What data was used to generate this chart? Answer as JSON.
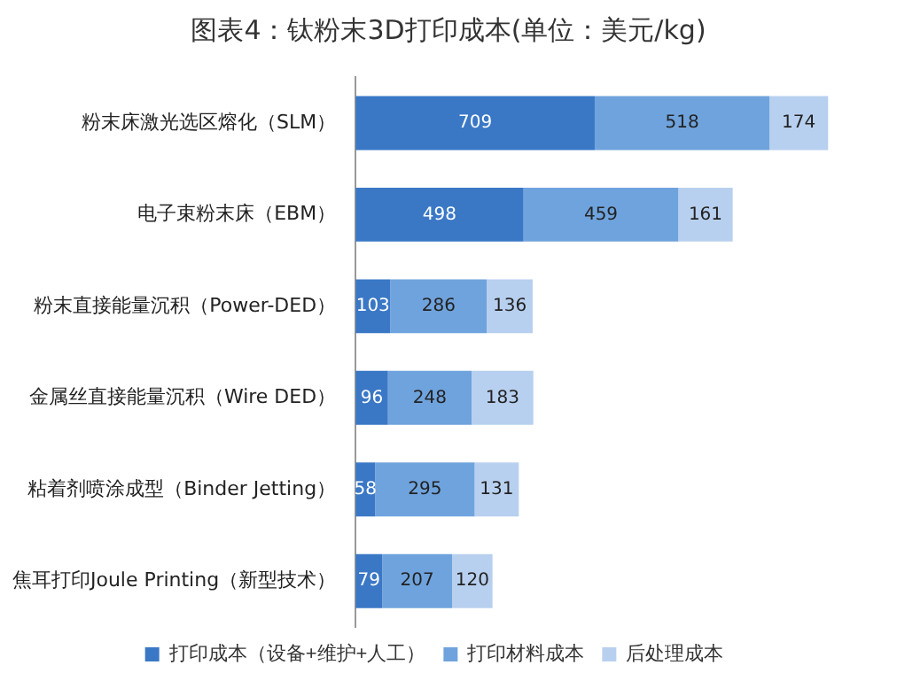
{
  "chart_data": {
    "type": "bar",
    "orientation": "horizontal",
    "stacked": true,
    "title": "图表4：钛粉末3D打印成本(单位：美元/kg)",
    "categories": [
      "粉末床激光选区熔化（SLM）",
      "电子束粉末床（EBM）",
      "粉末直接能量沉积（Power-DED）",
      "金属丝直接能量沉积（Wire DED）",
      "粘着剂喷涂成型（Binder Jetting）",
      "焦耳打印Joule Printing（新型技术）"
    ],
    "series": [
      {
        "name": "打印成本（设备+维护+人工）",
        "color": "#3a78c6",
        "values": [
          709,
          498,
          103,
          96,
          58,
          79
        ]
      },
      {
        "name": "打印材料成本",
        "color": "#6fa3dd",
        "values": [
          518,
          459,
          286,
          248,
          295,
          207
        ]
      },
      {
        "name": "后处理成本",
        "color": "#b8d0ef",
        "values": [
          174,
          161,
          136,
          183,
          131,
          120
        ]
      }
    ],
    "data_labels": true,
    "legend": "bottom"
  }
}
